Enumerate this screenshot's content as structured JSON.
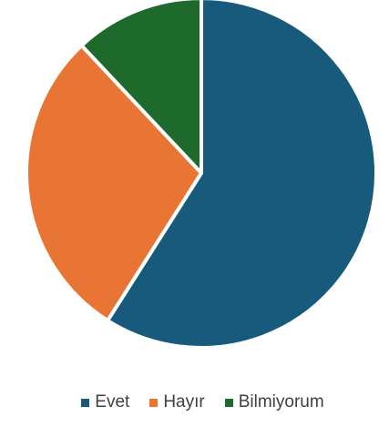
{
  "chart_data": {
    "type": "pie",
    "categories": [
      "Evet",
      "Hayır",
      "Bilmiyorum"
    ],
    "values": [
      59,
      29,
      12
    ],
    "colors": [
      "#175a7c",
      "#e97534",
      "#1e6a2d"
    ],
    "start_angle_deg": 0,
    "direction": "clockwise",
    "legend_position": "bottom",
    "title": ""
  }
}
